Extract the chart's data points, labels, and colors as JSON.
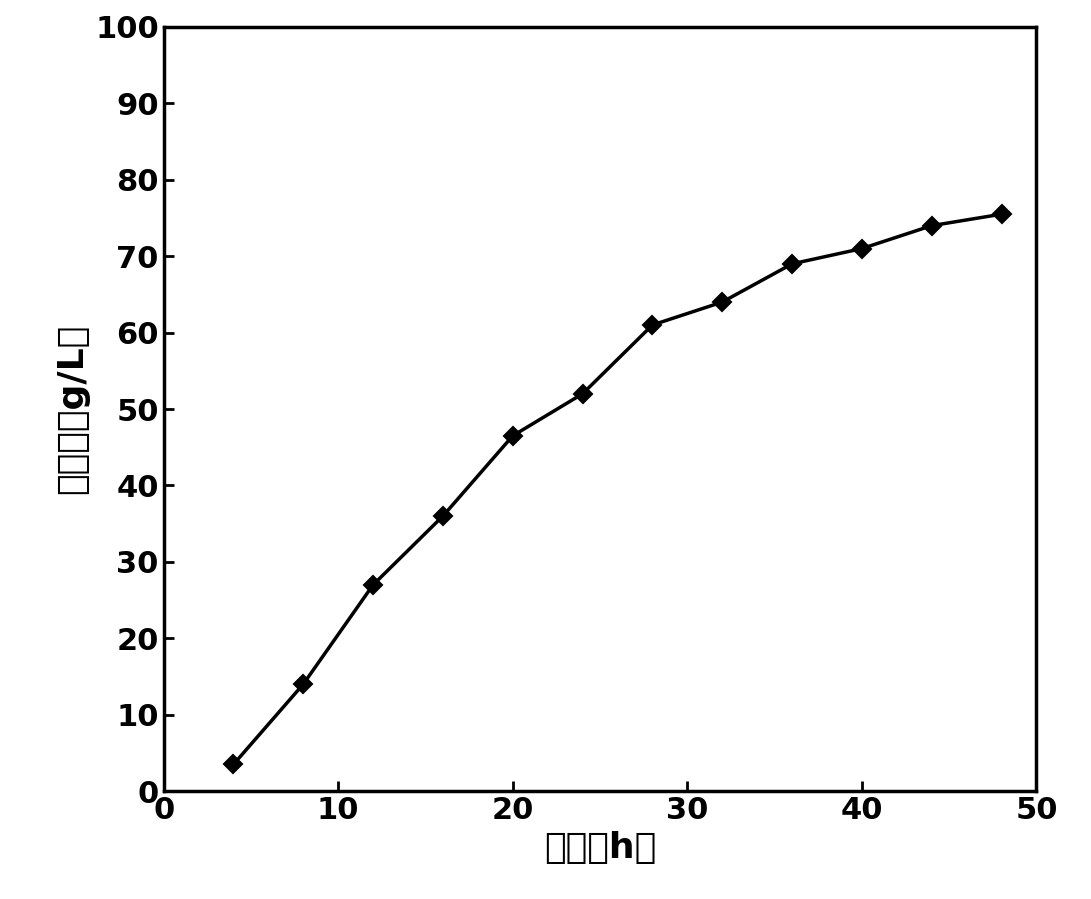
{
  "x": [
    4,
    8,
    12,
    16,
    20,
    24,
    28,
    32,
    36,
    40,
    44,
    48
  ],
  "y": [
    3.5,
    14,
    27,
    36,
    46.5,
    52,
    61,
    64,
    69,
    71,
    74,
    75.5
  ],
  "xlabel": "时间（h）",
  "ylabel": "生物量（g/L）",
  "xlim": [
    0,
    50
  ],
  "ylim": [
    0,
    100
  ],
  "xticks": [
    0,
    10,
    20,
    30,
    40,
    50
  ],
  "yticks": [
    0,
    10,
    20,
    30,
    40,
    50,
    60,
    70,
    80,
    90,
    100
  ],
  "line_color": "#000000",
  "marker": "D",
  "marker_size": 9,
  "marker_face_color": "#000000",
  "line_width": 2.5,
  "background_color": "#ffffff",
  "xlabel_fontsize": 26,
  "ylabel_fontsize": 26,
  "tick_fontsize": 22
}
